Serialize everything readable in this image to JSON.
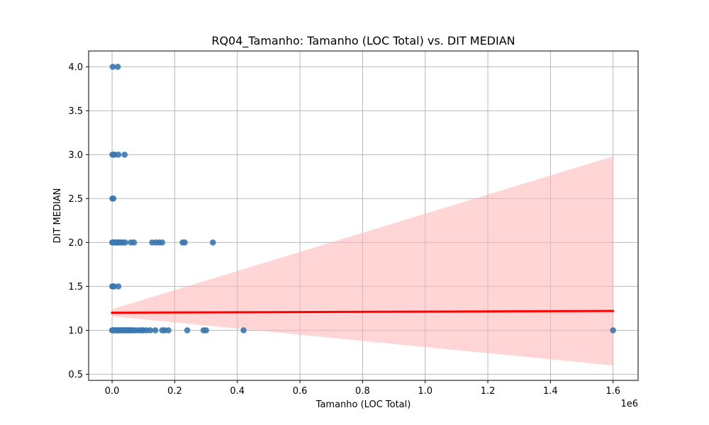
{
  "chart_data": {
    "type": "scatter",
    "title": "RQ04_Tamanho: Tamanho (LOC Total) vs. DIT MEDIAN",
    "xlabel": "Tamanho (LOC Total)",
    "ylabel": "DIT MEDIAN",
    "x_offset_label": "1e6",
    "x_scale_factor": 1000000,
    "xlim": [
      -75000,
      1680000
    ],
    "ylim": [
      0.43,
      4.18
    ],
    "x_ticks": [
      0,
      200000,
      400000,
      600000,
      800000,
      1000000,
      1200000,
      1400000,
      1600000
    ],
    "x_tick_labels": [
      "0.0",
      "0.2",
      "0.4",
      "0.6",
      "0.8",
      "1.0",
      "1.2",
      "1.4",
      "1.6"
    ],
    "y_ticks": [
      0.5,
      1.0,
      1.5,
      2.0,
      2.5,
      3.0,
      3.5,
      4.0
    ],
    "y_tick_labels": [
      "0.5",
      "1.0",
      "1.5",
      "2.0",
      "2.5",
      "3.0",
      "3.5",
      "4.0"
    ],
    "grid": true,
    "colors": {
      "points": "#3b78b0",
      "regression_line": "#ff0000",
      "confidence_band": "#ffb3b3",
      "grid": "#b0b0b0"
    },
    "regression": {
      "x": [
        0,
        1600000
      ],
      "y": [
        1.2,
        1.22
      ],
      "ci_lower": [
        1.16,
        0.6
      ],
      "ci_upper": [
        1.24,
        2.98
      ]
    },
    "points": [
      {
        "x": 2000,
        "y": 4.0
      },
      {
        "x": 18000,
        "y": 4.0
      },
      {
        "x": 1000,
        "y": 3.0
      },
      {
        "x": 5000,
        "y": 3.0
      },
      {
        "x": 8000,
        "y": 3.0
      },
      {
        "x": 20000,
        "y": 3.0
      },
      {
        "x": 40000,
        "y": 3.0
      },
      {
        "x": 1000,
        "y": 2.5
      },
      {
        "x": 4000,
        "y": 2.5
      },
      {
        "x": 500,
        "y": 2.0
      },
      {
        "x": 2000,
        "y": 2.0
      },
      {
        "x": 5000,
        "y": 2.0
      },
      {
        "x": 8000,
        "y": 2.0
      },
      {
        "x": 12000,
        "y": 2.0
      },
      {
        "x": 16000,
        "y": 2.0
      },
      {
        "x": 20000,
        "y": 2.0
      },
      {
        "x": 25000,
        "y": 2.0
      },
      {
        "x": 30000,
        "y": 2.0
      },
      {
        "x": 35000,
        "y": 2.0
      },
      {
        "x": 42000,
        "y": 2.0
      },
      {
        "x": 60000,
        "y": 2.0
      },
      {
        "x": 70000,
        "y": 2.0
      },
      {
        "x": 128000,
        "y": 2.0
      },
      {
        "x": 140000,
        "y": 2.0
      },
      {
        "x": 150000,
        "y": 2.0
      },
      {
        "x": 160000,
        "y": 2.0
      },
      {
        "x": 225000,
        "y": 2.0
      },
      {
        "x": 232000,
        "y": 2.0
      },
      {
        "x": 322000,
        "y": 2.0
      },
      {
        "x": 500,
        "y": 1.5
      },
      {
        "x": 3000,
        "y": 1.5
      },
      {
        "x": 6000,
        "y": 1.5
      },
      {
        "x": 20000,
        "y": 1.5
      },
      {
        "x": 0,
        "y": 1.0
      },
      {
        "x": 3000,
        "y": 1.0
      },
      {
        "x": 6000,
        "y": 1.0
      },
      {
        "x": 9000,
        "y": 1.0
      },
      {
        "x": 12000,
        "y": 1.0
      },
      {
        "x": 15000,
        "y": 1.0
      },
      {
        "x": 18000,
        "y": 1.0
      },
      {
        "x": 21000,
        "y": 1.0
      },
      {
        "x": 24000,
        "y": 1.0
      },
      {
        "x": 27000,
        "y": 1.0
      },
      {
        "x": 30000,
        "y": 1.0
      },
      {
        "x": 33000,
        "y": 1.0
      },
      {
        "x": 36000,
        "y": 1.0
      },
      {
        "x": 40000,
        "y": 1.0
      },
      {
        "x": 44000,
        "y": 1.0
      },
      {
        "x": 48000,
        "y": 1.0
      },
      {
        "x": 52000,
        "y": 1.0
      },
      {
        "x": 56000,
        "y": 1.0
      },
      {
        "x": 60000,
        "y": 1.0
      },
      {
        "x": 65000,
        "y": 1.0
      },
      {
        "x": 70000,
        "y": 1.0
      },
      {
        "x": 78000,
        "y": 1.0
      },
      {
        "x": 88000,
        "y": 1.0
      },
      {
        "x": 95000,
        "y": 1.0
      },
      {
        "x": 100000,
        "y": 1.0
      },
      {
        "x": 110000,
        "y": 1.0
      },
      {
        "x": 122000,
        "y": 1.0
      },
      {
        "x": 138000,
        "y": 1.0
      },
      {
        "x": 160000,
        "y": 1.0
      },
      {
        "x": 168000,
        "y": 1.0
      },
      {
        "x": 180000,
        "y": 1.0
      },
      {
        "x": 240000,
        "y": 1.0
      },
      {
        "x": 292000,
        "y": 1.0
      },
      {
        "x": 300000,
        "y": 1.0
      },
      {
        "x": 420000,
        "y": 1.0
      },
      {
        "x": 1600000,
        "y": 1.0
      }
    ]
  }
}
